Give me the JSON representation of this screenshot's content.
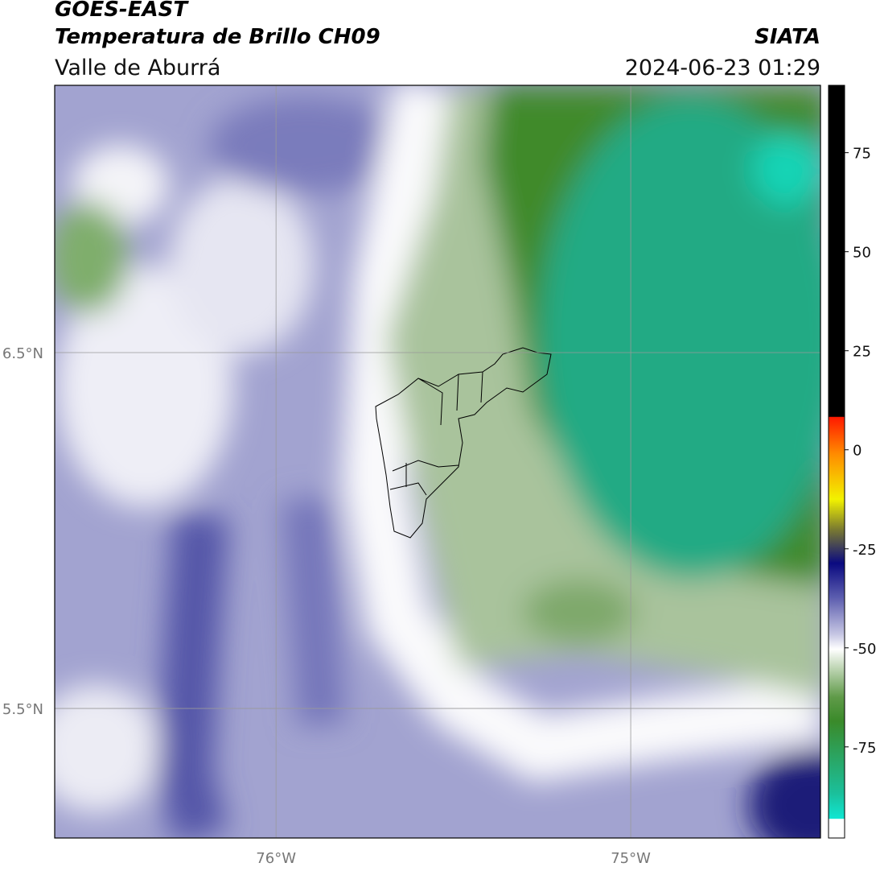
{
  "header": {
    "satellite": "GOES-EAST",
    "title": "Temperatura de Brillo CH09",
    "region": "Valle de Aburrá",
    "source": "SIATA",
    "datetime": "2024-06-23 01:29"
  },
  "chart_data": {
    "type": "map",
    "xlim": [
      -76.624,
      -74.465
    ],
    "ylim": [
      5.136,
      7.251
    ],
    "xticks": [
      {
        "value": -76,
        "label": "76°W"
      },
      {
        "value": -75,
        "label": "75°W"
      }
    ],
    "yticks": [
      {
        "value": 6.5,
        "label": "6.5°N"
      },
      {
        "value": 5.5,
        "label": "5.5°N"
      }
    ],
    "grid": true,
    "colorbar": {
      "lim": [
        -98,
        92
      ],
      "ticks": [
        75,
        50,
        25,
        0,
        -25,
        -50,
        -75
      ]
    }
  }
}
